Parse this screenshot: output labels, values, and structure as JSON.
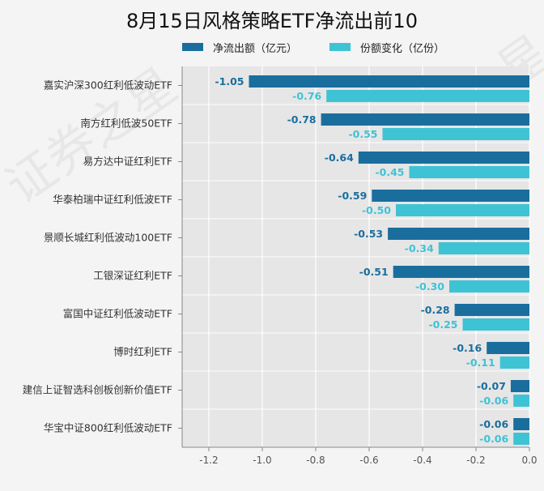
{
  "watermark": "证券之星",
  "chart_data": {
    "type": "bar",
    "orientation": "horizontal",
    "title": "8月15日风格策略ETF净流出前10",
    "categories": [
      "嘉实沪深300红利低波动ETF",
      "南方红利低波50ETF",
      "易方达中证红利ETF",
      "华泰柏瑞中证红利低波ETF",
      "景顺长城红利低波动100ETF",
      "工银深证红利ETF",
      "富国中证红利低波动ETF",
      "博时红利ETF",
      "建信上证智选科创板创新价值ETF",
      "华宝中证800红利低波动ETF"
    ],
    "series": [
      {
        "name": "净流出额（亿元）",
        "color": "#1a6e9e",
        "values": [
          -1.05,
          -0.78,
          -0.64,
          -0.59,
          -0.53,
          -0.51,
          -0.28,
          -0.16,
          -0.07,
          -0.06
        ],
        "labels": [
          "-1.05",
          "-0.78",
          "-0.64",
          "-0.59",
          "-0.53",
          "-0.51",
          "-0.28",
          "-0.16",
          "-0.07",
          "-0.06"
        ]
      },
      {
        "name": "份额变化（亿份）",
        "color": "#3ec3d5",
        "values": [
          -0.76,
          -0.55,
          -0.45,
          -0.5,
          -0.34,
          -0.3,
          -0.25,
          -0.11,
          -0.06,
          -0.06
        ],
        "labels": [
          "-0.76",
          "-0.55",
          "-0.45",
          "-0.50",
          "-0.34",
          "-0.30",
          "-0.25",
          "-0.11",
          "-0.06",
          "-0.06"
        ]
      }
    ],
    "xlim": [
      -1.3,
      0.0
    ],
    "xticks": [
      "-1.2",
      "-1.0",
      "-0.8",
      "-0.6",
      "-0.4",
      "-0.2",
      "0.0"
    ],
    "grid": true,
    "legend_position": "top"
  }
}
